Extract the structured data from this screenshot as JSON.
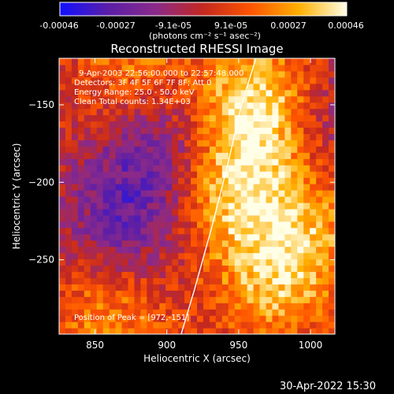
{
  "colorbar": {
    "ticks": [
      "-0.00046",
      "-0.00027",
      "-9.1e-05",
      "9.1e-05",
      "0.00027",
      "0.00046"
    ],
    "unit_label": "(photons cm⁻² s⁻¹ asec⁻²)",
    "colormap": [
      "#1010ff",
      "#5a1ea8",
      "#8a2a8a",
      "#c4281f",
      "#ff5500",
      "#ffb000",
      "#ffffe8"
    ]
  },
  "info": {
    "time_range": "9-Apr-2003 22:56:00.000 to 22:57:48.000",
    "detectors": "Detectors: 3F 4F 5F 6F 7F 8F; Att 0",
    "energy": "Energy Range: 25.0 - 50.0 keV",
    "clean": "Clean    Total counts: 1.34E+03",
    "peak": "Position of Peak = [972,-151]"
  },
  "timestamp": "30-Apr-2022 15:30",
  "chart_data": {
    "type": "heatmap",
    "title": "Reconstructed RHESSI Image",
    "xlabel": "Heliocentric X (arcsec)",
    "ylabel": "Heliocentric Y (arcsec)",
    "xlim": [
      825,
      1017
    ],
    "ylim": [
      -298,
      -120
    ],
    "xticks": [
      850,
      900,
      950,
      1000
    ],
    "yticks": [
      -150,
      -200,
      -250
    ],
    "clim": [
      -0.00046,
      0.00046
    ],
    "limb": [
      [
        910,
        -298
      ],
      [
        919,
        -270
      ],
      [
        931,
        -230
      ],
      [
        942,
        -190
      ],
      [
        952,
        -150
      ],
      [
        962,
        -120
      ]
    ],
    "peak": [
      972,
      -151
    ],
    "flux_features": [
      {
        "x": 965,
        "y": -150,
        "value": 0.00046
      },
      {
        "x": 945,
        "y": -205,
        "value": 0.00034
      },
      {
        "x": 975,
        "y": -265,
        "value": 0.0003
      },
      {
        "x": 860,
        "y": -285,
        "value": 0.00026
      },
      {
        "x": 878,
        "y": -132,
        "value": 0.00024
      },
      {
        "x": 1000,
        "y": -225,
        "value": 0.00022
      },
      {
        "x": 893,
        "y": -175,
        "value": -0.00028
      },
      {
        "x": 870,
        "y": -230,
        "value": -0.00024
      },
      {
        "x": 1008,
        "y": -160,
        "value": -0.00018
      }
    ]
  }
}
